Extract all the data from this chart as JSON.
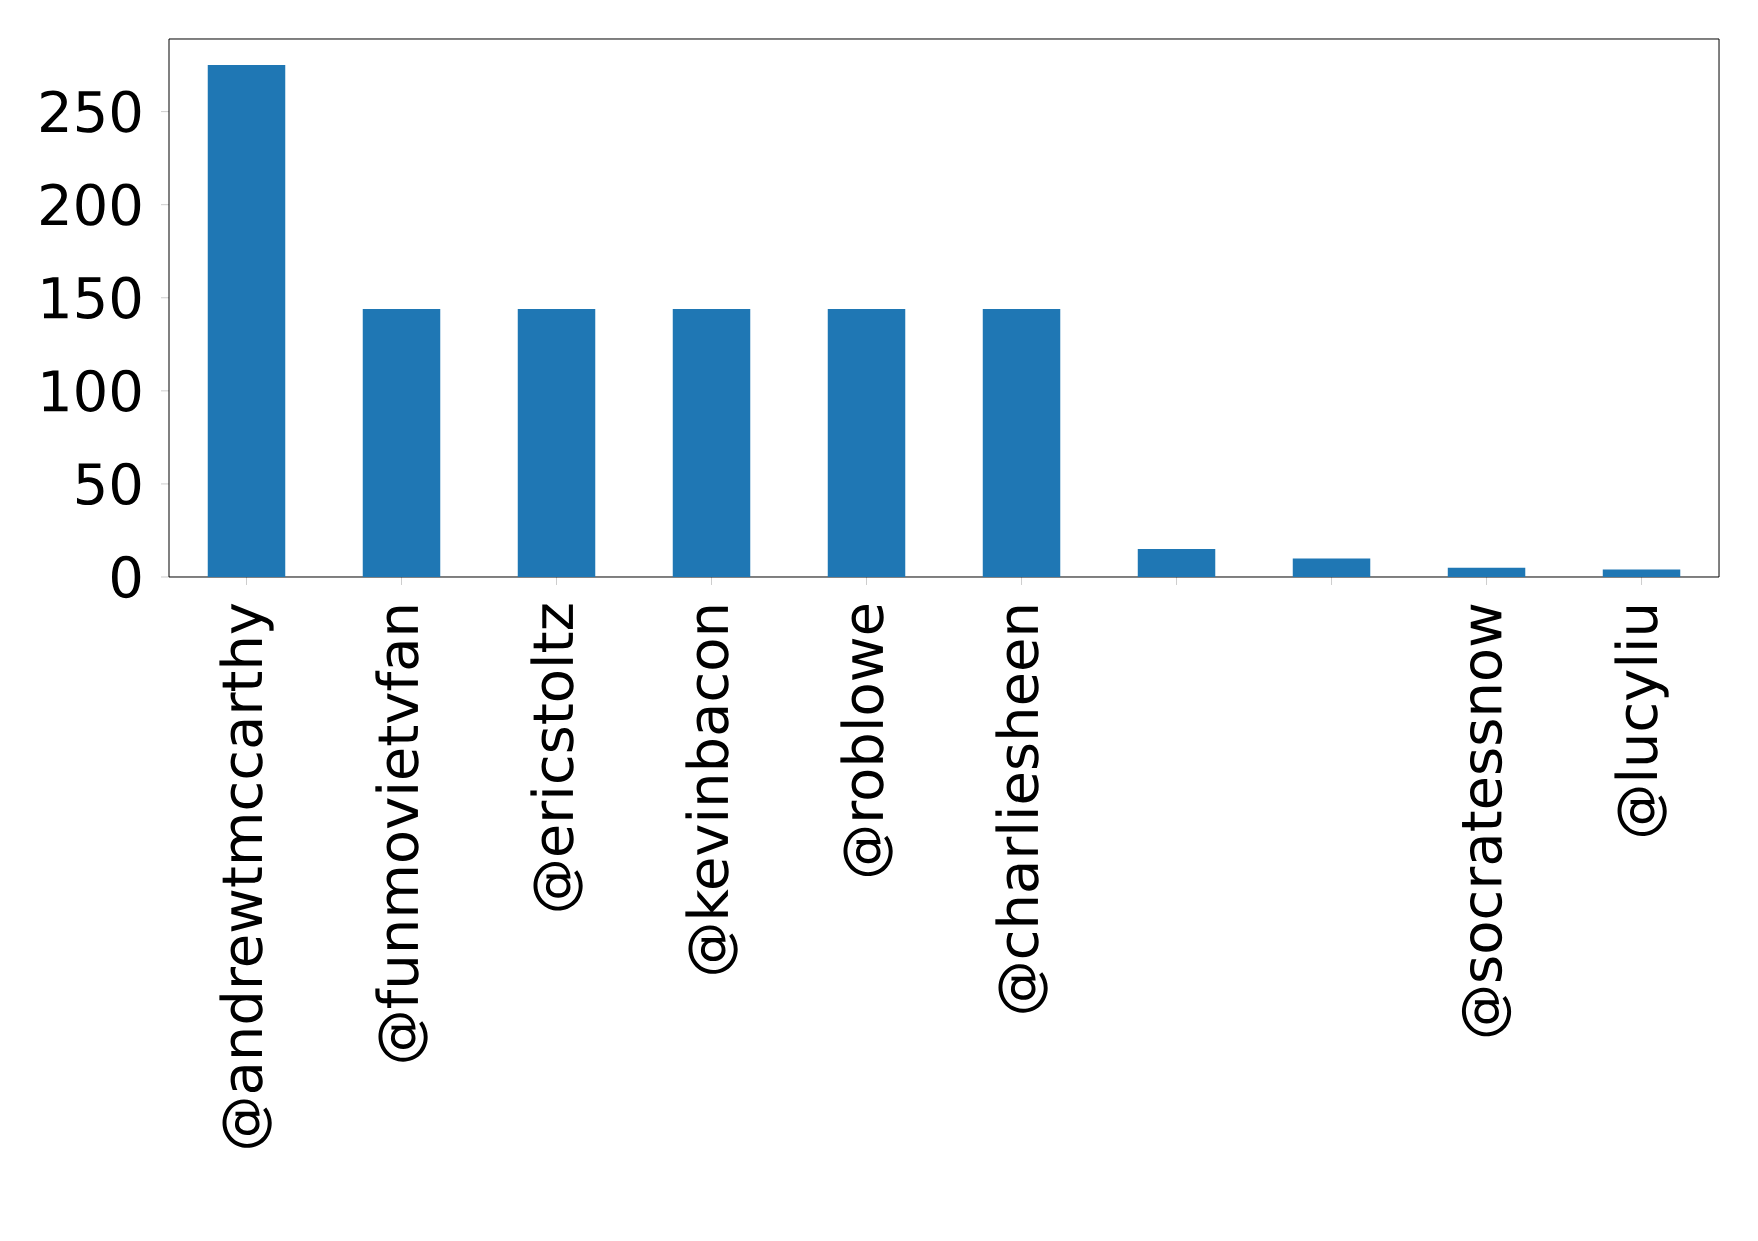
{
  "chart_data": {
    "type": "bar",
    "categories": [
      "@andrewtmccarthy",
      "@funmovietvfan",
      "@ericstoltz",
      "@kevinbacon",
      "@roblowe",
      "@charliesheen",
      null,
      null,
      "@socratessnow",
      "@lucyliu"
    ],
    "values": [
      275,
      144,
      144,
      144,
      144,
      144,
      15,
      10,
      5,
      4
    ],
    "color": "#1f77b4",
    "ylim": [
      0,
      289
    ],
    "yticks": [
      0,
      50,
      100,
      150,
      200,
      250
    ]
  }
}
